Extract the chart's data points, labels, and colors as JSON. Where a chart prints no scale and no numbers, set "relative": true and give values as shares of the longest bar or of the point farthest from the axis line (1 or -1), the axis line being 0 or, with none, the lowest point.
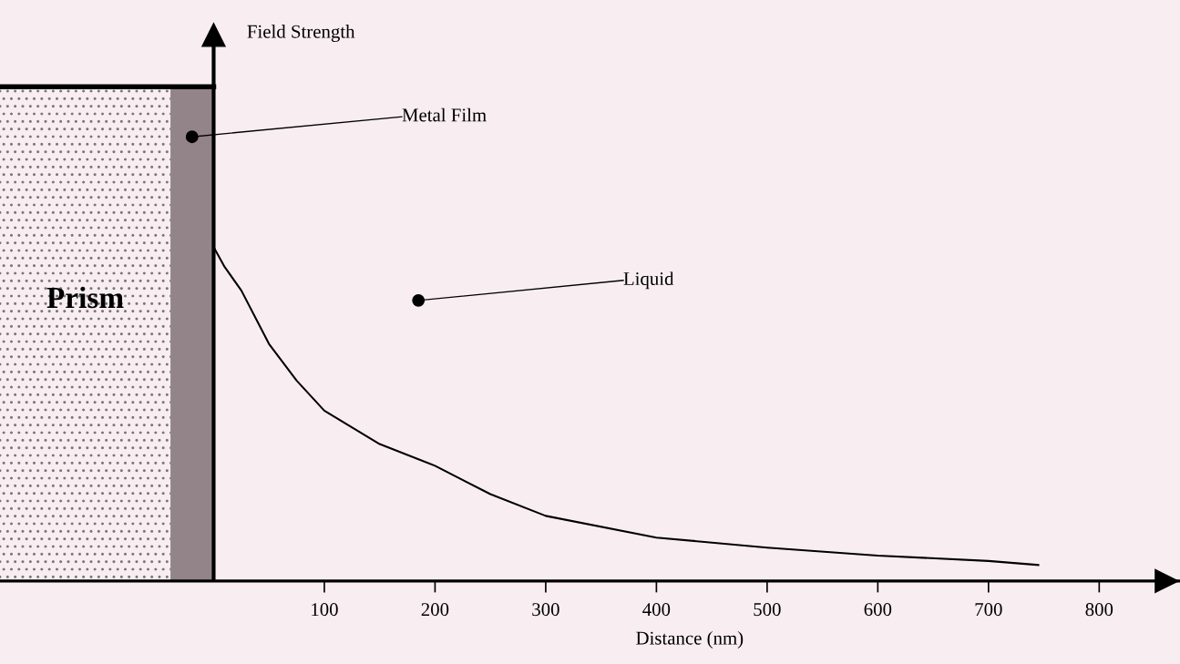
{
  "chart_data": {
    "type": "line",
    "relative": true,
    "xlabel": "Distance (nm)",
    "x": [
      0,
      10,
      25,
      50,
      75,
      100,
      150,
      200,
      250,
      300,
      400,
      500,
      600,
      700,
      745
    ],
    "series": [
      {
        "color": "#000000",
        "values": [
          1,
          0.94,
          0.87,
          0.71,
          0.6,
          0.51,
          0.41,
          0.345,
          0.26,
          0.195,
          0.13,
          0.1,
          0.076,
          0.06,
          0.048
        ]
      }
    ],
    "xlim": [
      -193,
      873
    ],
    "xticks": [
      100,
      200,
      300,
      400,
      500,
      600,
      700,
      800
    ],
    "bands": [
      {
        "axis": "x",
        "from": -193,
        "to": -39,
        "label": "Prism",
        "color": "#f8eef2"
      },
      {
        "axis": "x",
        "from": -39,
        "to": 0,
        "label": "Metal Film",
        "color": "#938489"
      }
    ],
    "annotations": [
      "Field Strength",
      "Liquid"
    ],
    "grid": false,
    "legend": false,
    "marker": "none",
    "line_style": "solid"
  }
}
